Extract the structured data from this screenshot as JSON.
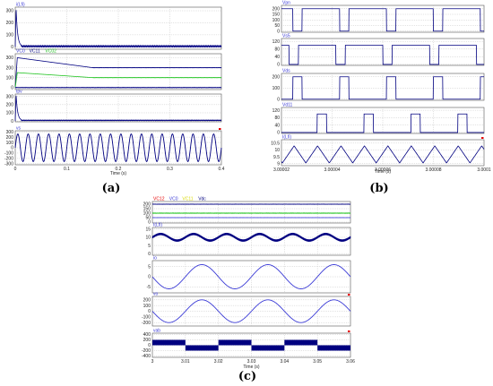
{
  "colors": {
    "navy": "#000080",
    "blue": "#3b3bd6",
    "green": "#22c422",
    "red": "#e60000",
    "yellow": "#d8d800",
    "grid": "#b8b8b8"
  },
  "captions": {
    "a": "(a)",
    "b": "(b)",
    "c": "(c)"
  },
  "chart_data": [
    {
      "id": "a",
      "type": "line",
      "xlabel": "Time (s)",
      "xticks": [
        "0",
        "0.1",
        "0.2",
        "0.3",
        "0.4"
      ],
      "xlim": [
        0,
        0.4
      ],
      "panels": [
        {
          "title": [
            {
              "text": "i(Lfi)",
              "color": "blue"
            }
          ],
          "yticks": [
            "300",
            "200",
            "100",
            "0"
          ],
          "ylim": [
            -20,
            330
          ],
          "series": [
            {
              "color": "navy",
              "shape": "inrush",
              "peak": 320,
              "steady": 5,
              "ripple": 4
            }
          ]
        },
        {
          "title": [
            {
              "text": "VC0",
              "color": "blue"
            },
            {
              "text": "VC11",
              "color": "navy"
            },
            {
              "text": "VC02",
              "color": "green"
            }
          ],
          "yticks": [
            "300",
            "200",
            "100",
            "0"
          ],
          "ylim": [
            -20,
            340
          ],
          "series": [
            {
              "color": "navy",
              "shape": "step-settle",
              "peak": 300,
              "steady": 200,
              "settle": 0.15
            },
            {
              "color": "green",
              "shape": "step-settle",
              "peak": 150,
              "steady": 100,
              "settle": 0.15
            },
            {
              "color": "navy",
              "shape": "flat",
              "value": 0,
              "ripple": 3
            }
          ]
        },
        {
          "title": [
            {
              "text": "Ipv",
              "color": "blue"
            }
          ],
          "yticks": [
            "300",
            "200",
            "100",
            "0"
          ],
          "ylim": [
            -10,
            330
          ],
          "series": [
            {
              "color": "navy",
              "shape": "inrush",
              "peak": 320,
              "steady": 8,
              "ripple": 3
            }
          ]
        },
        {
          "title": [
            {
              "text": "vs",
              "color": "blue"
            }
          ],
          "yticks": [
            "300",
            "200",
            "100",
            "0",
            "-100",
            "-200",
            "-300"
          ],
          "ylim": [
            -320,
            320
          ],
          "series": [
            {
              "color": "navy",
              "shape": "sine",
              "amp": 260,
              "freq": 50
            }
          ]
        }
      ]
    },
    {
      "id": "b",
      "type": "line",
      "xlabel": "Time (s)",
      "xticks": [
        "3.00002",
        "3.00004",
        "3.00006",
        "3.00008",
        "3.0001"
      ],
      "xlim": [
        2.999992,
        3.0001
      ],
      "panels": [
        {
          "title": [
            {
              "text": "Vpn",
              "color": "blue"
            }
          ],
          "yticks": [
            "200",
            "150",
            "100",
            "50",
            "0"
          ],
          "ylim": [
            -10,
            230
          ],
          "series": [
            {
              "color": "navy",
              "shape": "pulse-low",
              "high": 200,
              "low": 0,
              "period": 2.5e-05,
              "width": 5e-06,
              "phase": 6e-06
            }
          ]
        },
        {
          "title": [
            {
              "text": "Vs5",
              "color": "blue"
            }
          ],
          "yticks": [
            "120",
            "80",
            "40",
            "0"
          ],
          "ylim": [
            -5,
            135
          ],
          "series": [
            {
              "color": "navy",
              "shape": "pulse-high",
              "high": 100,
              "low": 0,
              "period": 2.5e-05,
              "width": 2e-05,
              "phase": 9e-06
            }
          ]
        },
        {
          "title": [
            {
              "text": "Vds",
              "color": "blue"
            }
          ],
          "yticks": [
            "200",
            "100",
            "0"
          ],
          "ylim": [
            -10,
            230
          ],
          "series": [
            {
              "color": "navy",
              "shape": "pulse-high",
              "high": 200,
              "low": 0,
              "period": 2.5e-05,
              "width": 5e-06,
              "phase": 6e-06
            }
          ]
        },
        {
          "title": [
            {
              "text": "Vd11",
              "color": "blue"
            }
          ],
          "yticks": [
            "120",
            "80",
            "40",
            "0"
          ],
          "ylim": [
            -5,
            135
          ],
          "series": [
            {
              "color": "navy",
              "shape": "pulse-high",
              "high": 100,
              "low": 0,
              "period": 2.5e-05,
              "width": 5e-06,
              "phase": 1.9e-05
            }
          ]
        },
        {
          "title": [
            {
              "text": "I(Lfi)",
              "color": "blue"
            }
          ],
          "yticks": [
            "10.5",
            "10",
            "9.5",
            "9"
          ],
          "ylim": [
            8.85,
            10.75
          ],
          "series": [
            {
              "color": "navy",
              "shape": "triangle",
              "min": 9.05,
              "max": 10.3,
              "period": 1.25e-05,
              "phase": 5e-07
            }
          ]
        }
      ]
    },
    {
      "id": "c",
      "type": "line",
      "xlabel": "Time (s)",
      "xticks": [
        "3",
        "3.01",
        "3.02",
        "3.03",
        "3.04",
        "3.05",
        "3.06"
      ],
      "xlim": [
        3,
        3.06
      ],
      "panels": [
        {
          "title": [
            {
              "text": "VC12",
              "color": "red"
            },
            {
              "text": "VC0",
              "color": "blue"
            },
            {
              "text": "VC11",
              "color": "yellow"
            },
            {
              "text": "Vdc",
              "color": "navy"
            }
          ],
          "yticks": [
            "200",
            "150",
            "100",
            "50",
            "0"
          ],
          "ylim": [
            -10,
            230
          ],
          "series": [
            {
              "color": "navy",
              "shape": "flat",
              "value": 200,
              "ripple": 2
            },
            {
              "color": "green",
              "shape": "flat",
              "value": 100,
              "ripple": 3
            },
            {
              "color": "blue",
              "shape": "flat",
              "value": 50,
              "ripple": 1
            }
          ]
        },
        {
          "title": [
            {
              "text": "I(Lfi)",
              "color": "blue"
            }
          ],
          "yticks": [
            "15",
            "10",
            "5",
            "0"
          ],
          "ylim": [
            -1,
            16
          ],
          "series": [
            {
              "color": "navy",
              "shape": "thick-sine",
              "offset": 10,
              "amp": 2,
              "freq": 100,
              "band": 0.6
            }
          ]
        },
        {
          "title": [
            {
              "text": "io",
              "color": "blue"
            }
          ],
          "yticks": [
            "5",
            "0",
            "-5"
          ],
          "ylim": [
            -8,
            8
          ],
          "series": [
            {
              "color": "blue",
              "shape": "sine",
              "amp": 6,
              "freq": 50,
              "phase": 3.1416
            }
          ]
        },
        {
          "title": [
            {
              "text": "vo",
              "color": "blue"
            }
          ],
          "yticks": [
            "200",
            "100",
            "0",
            "-100",
            "-200"
          ],
          "ylim": [
            -260,
            260
          ],
          "series": [
            {
              "color": "blue",
              "shape": "sine",
              "amp": 200,
              "freq": 50,
              "phase": 3.1416
            }
          ]
        },
        {
          "title": [
            {
              "text": "vab",
              "color": "blue"
            }
          ],
          "yticks": [
            "400",
            "200",
            "0",
            "-200",
            "-400"
          ],
          "ylim": [
            -450,
            450
          ],
          "series": [
            {
              "color": "navy",
              "shape": "pwm-square",
              "high": 200,
              "low": -200,
              "freq": 50,
              "phase": 3.1416
            }
          ]
        }
      ]
    }
  ]
}
